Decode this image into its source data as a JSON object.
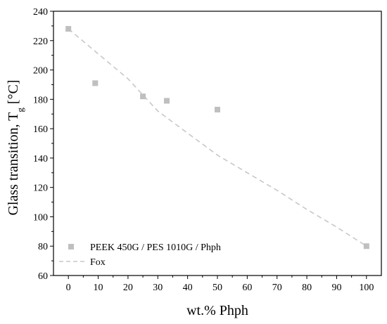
{
  "chart_data": {
    "type": "scatter",
    "title": "",
    "xlabel": "wt.% Phph",
    "ylabel_main": "Glass transition, T",
    "ylabel_sub": "g",
    "ylabel_unit": " [°C]",
    "xlim": [
      -5,
      105
    ],
    "ylim": [
      60,
      240
    ],
    "xticks": [
      0,
      10,
      20,
      30,
      40,
      50,
      60,
      70,
      80,
      90,
      100
    ],
    "yticks": [
      60,
      80,
      100,
      120,
      140,
      160,
      180,
      200,
      220,
      240
    ],
    "grid": false,
    "legend_position": "bottom-left",
    "series": [
      {
        "name": "PEEK 450G / PES 1010G / Phph",
        "kind": "scatter",
        "marker": "square",
        "color": "#bfbfbf",
        "points": [
          {
            "x": 0,
            "y": 228
          },
          {
            "x": 9,
            "y": 191
          },
          {
            "x": 25,
            "y": 182
          },
          {
            "x": 33,
            "y": 179
          },
          {
            "x": 50,
            "y": 173
          },
          {
            "x": 100,
            "y": 80
          }
        ]
      },
      {
        "name": "Fox",
        "kind": "line",
        "dash": "dashed",
        "color": "#c8c8c8",
        "points": [
          {
            "x": 0,
            "y": 228
          },
          {
            "x": 10,
            "y": 211
          },
          {
            "x": 20,
            "y": 194
          },
          {
            "x": 30,
            "y": 172
          },
          {
            "x": 40,
            "y": 157
          },
          {
            "x": 50,
            "y": 142
          },
          {
            "x": 60,
            "y": 130
          },
          {
            "x": 70,
            "y": 118
          },
          {
            "x": 80,
            "y": 105
          },
          {
            "x": 90,
            "y": 93
          },
          {
            "x": 100,
            "y": 80
          }
        ]
      }
    ]
  }
}
